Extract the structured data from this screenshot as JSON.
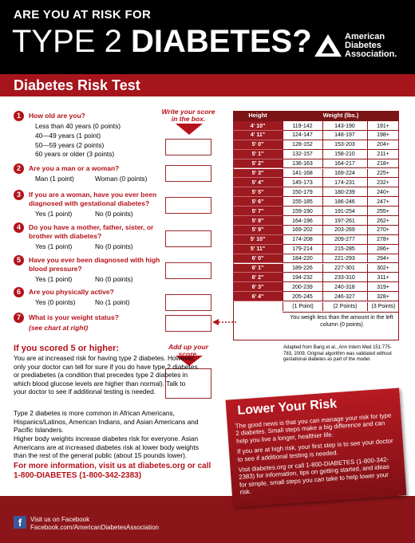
{
  "header": {
    "kicker": "ARE YOU AT RISK FOR",
    "title_light": "TYPE 2",
    "title_bold": "DIABETES?",
    "org": [
      "American",
      "Diabetes",
      "Association."
    ]
  },
  "banner": "Diabetes Risk Test",
  "instructions": {
    "write": "Write your score in the box.",
    "add": "Add up your score."
  },
  "questions": [
    {
      "number": "1",
      "text": "How old are you?",
      "options": [
        "Less than 40 years (0 points)",
        "40—49 years (1 point)",
        "50—59 years (2 points)",
        "60 years or older (3 points)"
      ]
    },
    {
      "number": "2",
      "text": "Are you a man or a woman?",
      "options": [
        "Man (1 point)",
        "Woman (0 points)"
      ]
    },
    {
      "number": "3",
      "text": "If you are a woman, have you ever been diagnosed with gestational diabetes?",
      "options": [
        "Yes (1 point)",
        "No (0 points)"
      ]
    },
    {
      "number": "4",
      "text": "Do you have a mother, father, sister, or brother with diabetes?",
      "options": [
        "Yes (1 point)",
        "No (0 points)"
      ]
    },
    {
      "number": "5",
      "text": "Have you ever been diagnosed with high blood pressure?",
      "options": [
        "Yes (1 point)",
        "No (0 points)"
      ]
    },
    {
      "number": "6",
      "text": "Are you physically active?",
      "options": [
        "Yes (0 points)",
        "No (1 point)"
      ]
    },
    {
      "number": "7",
      "text": "What is your weight status?",
      "note": "(see chart at right)",
      "options": []
    }
  ],
  "weight_table": {
    "headers": [
      "Height",
      "Weight (lbs.)"
    ],
    "rows": [
      [
        "4' 10\"",
        "119-142",
        "143-190",
        "191+"
      ],
      [
        "4' 11\"",
        "124-147",
        "148-197",
        "198+"
      ],
      [
        "5' 0\"",
        "128-152",
        "153-203",
        "204+"
      ],
      [
        "5' 1\"",
        "132-157",
        "158-210",
        "211+"
      ],
      [
        "5' 2\"",
        "136-163",
        "164-217",
        "218+"
      ],
      [
        "5' 3\"",
        "141-168",
        "169-224",
        "225+"
      ],
      [
        "5' 4\"",
        "145-173",
        "174-231",
        "232+"
      ],
      [
        "5' 5\"",
        "150-179",
        "180-239",
        "240+"
      ],
      [
        "5' 6\"",
        "155-185",
        "186-246",
        "247+"
      ],
      [
        "5' 7\"",
        "159-190",
        "191-254",
        "255+"
      ],
      [
        "5' 8\"",
        "164-196",
        "197-261",
        "262+"
      ],
      [
        "5' 9\"",
        "169-202",
        "203-269",
        "270+"
      ],
      [
        "5' 10\"",
        "174-208",
        "209-277",
        "278+"
      ],
      [
        "5' 11\"",
        "179-214",
        "215-285",
        "286+"
      ],
      [
        "6' 0\"",
        "184-220",
        "221-293",
        "294+"
      ],
      [
        "6' 1\"",
        "189-226",
        "227-301",
        "302+"
      ],
      [
        "6' 2\"",
        "194-232",
        "233-310",
        "311+"
      ],
      [
        "6' 3\"",
        "200-239",
        "240-318",
        "319+"
      ],
      [
        "6' 4\"",
        "205-245",
        "246-327",
        "328+"
      ]
    ],
    "points": [
      "(1 Point)",
      "(2 Points)",
      "(3 Points)"
    ],
    "note": "You weigh less than the amount in the left column (0 points)"
  },
  "source": "Adapted from Bang et al., Ann Intern Med 151:775-783, 2009. Original algorithm was validated without gestational diabetes as part of the model.",
  "results": {
    "heading": "If you scored 5 or higher:",
    "paragraphs": [
      "You are at increased risk for having type 2 diabetes. However, only your doctor can tell for sure if you do have type 2 diabetes or prediabetes (a condition that precedes type 2 diabetes in which blood glucose levels are higher than normal). Talk to your doctor to see if additional testing is needed.",
      "Type 2 diabetes is more common in African Americans, Hispanics/Latinos, American Indians, and Asian Americans and Pacific Islanders.",
      "Higher body weights increase diabetes risk for everyone. Asian Americans are at increased diabetes risk at lower body weights than the rest of the general public (about 15 pounds lower)."
    ],
    "more": "For more information, visit us at diabetes.org or call 1-800-DIABETES (1-800-342-2383)"
  },
  "lower_risk": {
    "title": "Lower Your Risk",
    "paragraphs": [
      "The good news is that you can manage your risk for type 2 diabetes. Small steps make a big difference and can help you live a longer, healthier life.",
      "If you are at high risk, your first step is to see your doctor to see if additional testing is needed.",
      "Visit diabetes.org or call 1-800-DIABETES (1-800-342-2383) for information, tips on getting started, and ideas for simple, small steps you can take to help lower your risk."
    ]
  },
  "footer": {
    "lines": [
      "Visit us on Facebook",
      "Facebook.com/AmericanDiabetesAssociation"
    ]
  }
}
